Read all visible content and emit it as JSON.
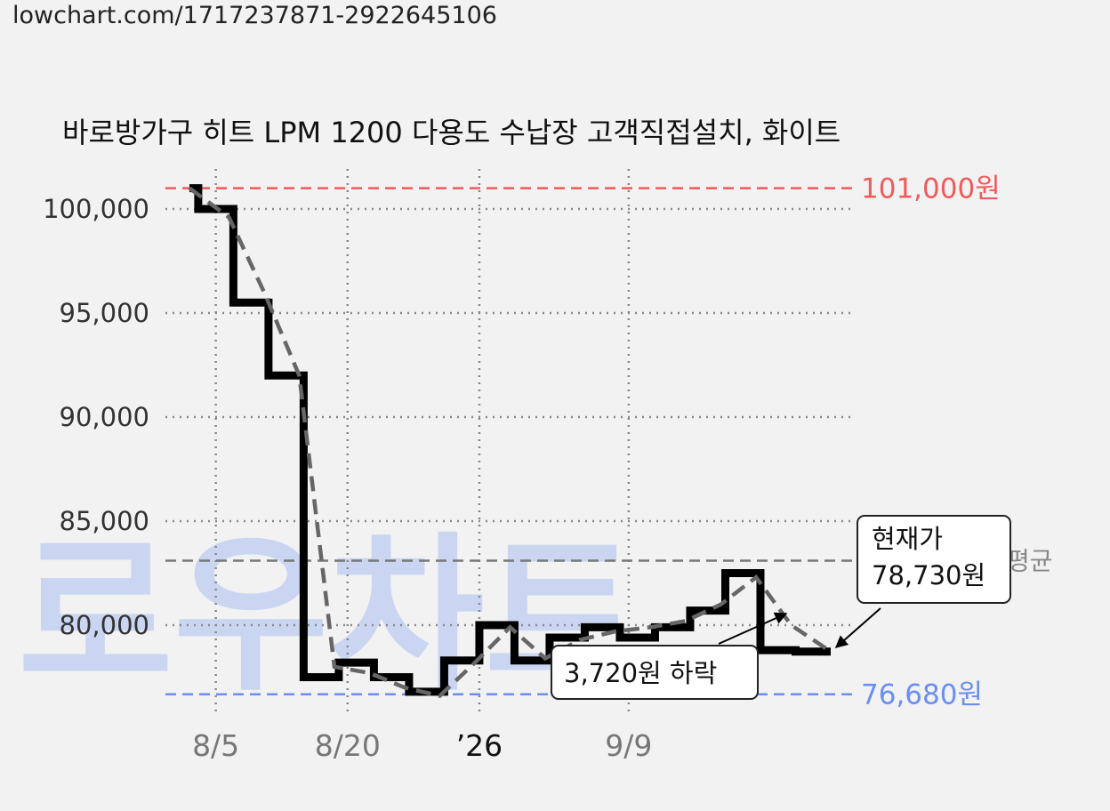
{
  "source_url": "lowchart.com/1717237871-2922645106",
  "watermark": "로우차트",
  "colors": {
    "background": "#f2f2f2",
    "price_line": "#000000",
    "trend_line": "#666666",
    "max_line": "#f05a5a",
    "min_line": "#6a8ff0",
    "avg_line": "#777777",
    "grid": "#888888"
  },
  "chart_data": {
    "type": "line",
    "title": "바로방가구 히트 LPM 1200 다용도 수납장 고객직접설치, 화이트",
    "ylim": [
      75500,
      102000
    ],
    "y_ticks": [
      80000,
      85000,
      90000,
      95000,
      100000
    ],
    "y_tick_labels": [
      "80,000",
      "85,000",
      "90,000",
      "95,000",
      "100,000"
    ],
    "x_ticks": [
      {
        "label": "8/5",
        "x": 3,
        "year": false
      },
      {
        "label": "8/20",
        "x": 18,
        "year": false
      },
      {
        "label": "’26",
        "x": 33,
        "year": true
      },
      {
        "label": "9/9",
        "x": 50,
        "year": false
      }
    ],
    "grid": true,
    "series": [
      {
        "name": "",
        "style": "step",
        "x": [
          0,
          1,
          5,
          9,
          13,
          17,
          21,
          25,
          29,
          33,
          37,
          41,
          45,
          49,
          53,
          57,
          61,
          65,
          69,
          73
        ],
        "y": [
          101000,
          100000,
          95500,
          92000,
          77500,
          78200,
          77500,
          76800,
          78300,
          80000,
          78300,
          79400,
          79900,
          79400,
          79900,
          80700,
          82500,
          78800,
          78730,
          78730
        ]
      },
      {
        "name": "",
        "style": "dashed",
        "x": [
          0,
          4.5,
          8.5,
          12.5,
          16.5,
          20.5,
          24.5,
          28.5,
          32.5,
          36.5,
          40.5,
          44.5,
          48.5,
          52.5,
          56.5,
          60.5,
          64.5,
          68.5,
          73
        ],
        "y": [
          101000,
          99600,
          96000,
          92000,
          78000,
          77700,
          77000,
          76600,
          78200,
          79900,
          78400,
          79300,
          79700,
          79900,
          80200,
          81000,
          82300,
          80000,
          78730
        ]
      }
    ],
    "reference_lines": [
      {
        "kind": "max",
        "value": 101000,
        "label": "101,000원"
      },
      {
        "kind": "min",
        "value": 76680,
        "label": "76,680원"
      },
      {
        "kind": "avg",
        "value": 83100,
        "label": "평균"
      }
    ],
    "annotations": [
      {
        "kind": "current",
        "lines": [
          "현재가",
          "78,730원"
        ]
      },
      {
        "kind": "change",
        "text": "3,720원 하락"
      }
    ]
  }
}
